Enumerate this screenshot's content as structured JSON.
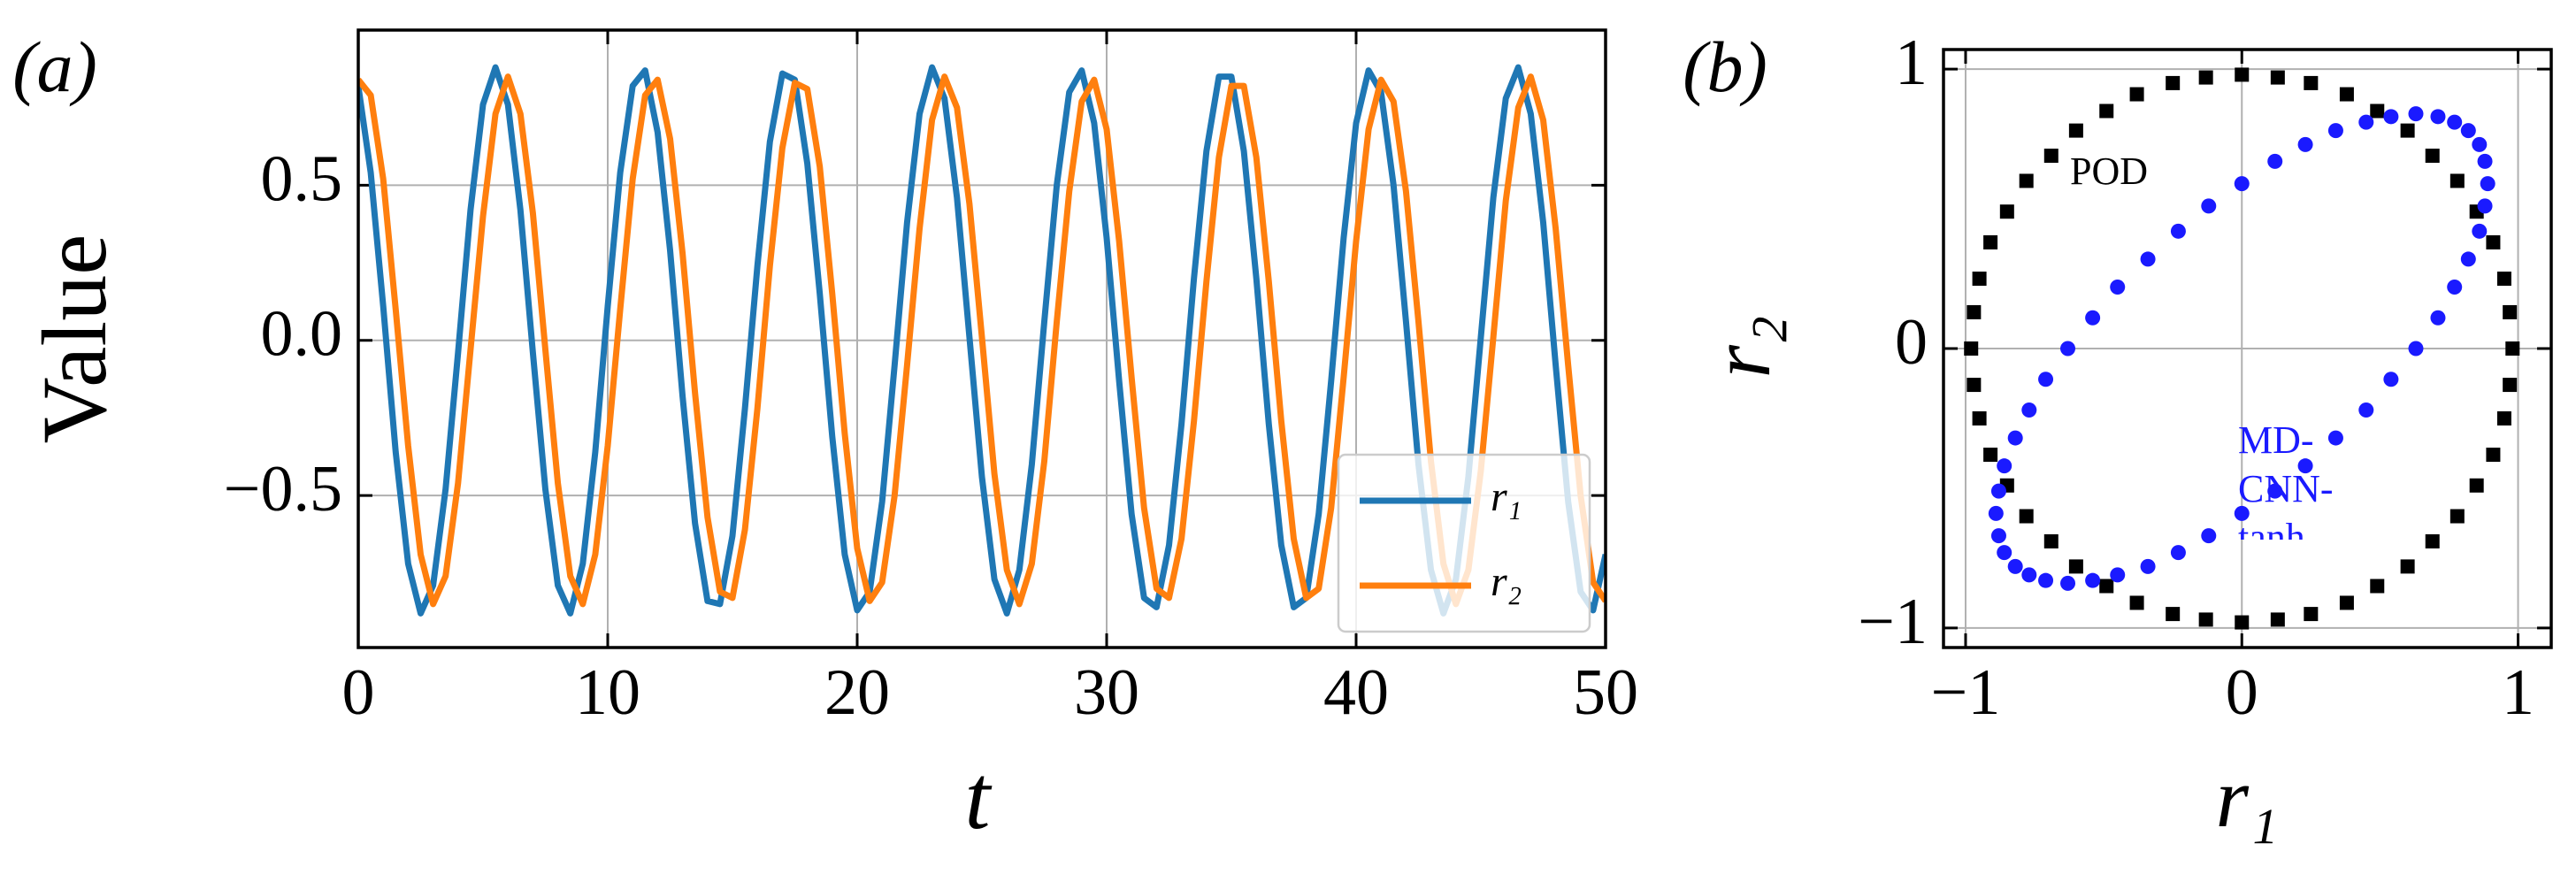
{
  "chart_data": [
    {
      "type": "line",
      "panel_label": "(a)",
      "xlabel": "t",
      "ylabel": "Value",
      "xlim": [
        0,
        50
      ],
      "ylim": [
        -0.99,
        1.0
      ],
      "xticks": [
        0,
        10,
        20,
        30,
        40,
        50
      ],
      "yticks": [
        {
          "value": -0.5,
          "label": "−0.5"
        },
        {
          "value": 0,
          "label": "0.0"
        },
        {
          "value": 0.5,
          "label": "0.5"
        }
      ],
      "grid": true,
      "legend": "lower right",
      "x": [
        0,
        0.5,
        1,
        1.5,
        2,
        2.5,
        3,
        3.5,
        4,
        4.5,
        5,
        5.5,
        6,
        6.5,
        7,
        7.5,
        8,
        8.5,
        9,
        9.5,
        10,
        10.5,
        11,
        11.5,
        12,
        12.5,
        13,
        13.5,
        14,
        14.5,
        15,
        15.5,
        16,
        16.5,
        17,
        17.5,
        18,
        18.5,
        19,
        19.5,
        20,
        20.5,
        21,
        21.5,
        22,
        22.5,
        23,
        23.5,
        24,
        24.5,
        25,
        25.5,
        26,
        26.5,
        27,
        27.5,
        28,
        28.5,
        29,
        29.5,
        30,
        30.5,
        31,
        31.5,
        32,
        32.5,
        33,
        33.5,
        34,
        34.5,
        35,
        35.5,
        36,
        36.5,
        37,
        37.5,
        38,
        38.5,
        39,
        39.5,
        40,
        40.5,
        41,
        41.5,
        42,
        42.5,
        43,
        43.5,
        44,
        44.5,
        45,
        45.5,
        46,
        46.5,
        47,
        47.5,
        48,
        48.5,
        49,
        49.5,
        50
      ],
      "series": [
        {
          "name": "r₁",
          "color": "#1f77b4",
          "values": [
            0.82,
            0.54,
            0.11,
            -0.36,
            -0.72,
            -0.88,
            -0.79,
            -0.48,
            -0.04,
            0.42,
            0.76,
            0.88,
            0.76,
            0.42,
            -0.04,
            -0.48,
            -0.79,
            -0.88,
            -0.72,
            -0.36,
            0.11,
            0.54,
            0.82,
            0.87,
            0.67,
            0.29,
            -0.18,
            -0.59,
            -0.84,
            -0.85,
            -0.63,
            -0.22,
            0.24,
            0.64,
            0.86,
            0.84,
            0.57,
            0.15,
            -0.31,
            -0.69,
            -0.87,
            -0.81,
            -0.52,
            -0.08,
            0.38,
            0.73,
            0.88,
            0.78,
            0.46,
            0.01,
            -0.44,
            -0.77,
            -0.88,
            -0.74,
            -0.4,
            0.06,
            0.5,
            0.8,
            0.87,
            0.7,
            0.33,
            -0.13,
            -0.56,
            -0.83,
            -0.86,
            -0.66,
            -0.27,
            0.2,
            0.61,
            0.85,
            0.85,
            0.61,
            0.2,
            -0.27,
            -0.66,
            -0.86,
            -0.83,
            -0.56,
            -0.13,
            0.33,
            0.7,
            0.87,
            0.8,
            0.5,
            0.06,
            -0.4,
            -0.74,
            -0.88,
            -0.77,
            -0.44,
            0.01,
            0.46,
            0.78,
            0.88,
            0.73,
            0.38,
            -0.08,
            -0.52,
            -0.81,
            -0.87,
            -0.69
          ]
        },
        {
          "name": "r₂",
          "color": "#ff7f0e",
          "values": [
            0.84,
            0.79,
            0.52,
            0.1,
            -0.34,
            -0.69,
            -0.85,
            -0.76,
            -0.46,
            -0.03,
            0.4,
            0.73,
            0.85,
            0.73,
            0.41,
            -0.03,
            -0.46,
            -0.76,
            -0.85,
            -0.69,
            -0.34,
            0.1,
            0.52,
            0.79,
            0.84,
            0.65,
            0.28,
            -0.17,
            -0.57,
            -0.81,
            -0.83,
            -0.61,
            -0.22,
            0.24,
            0.62,
            0.83,
            0.81,
            0.56,
            0.15,
            -0.3,
            -0.67,
            -0.84,
            -0.78,
            -0.5,
            -0.08,
            0.36,
            0.71,
            0.85,
            0.75,
            0.44,
            0.01,
            -0.43,
            -0.74,
            -0.85,
            -0.72,
            -0.39,
            0.06,
            0.48,
            0.77,
            0.84,
            0.68,
            0.32,
            -0.12,
            -0.54,
            -0.8,
            -0.83,
            -0.64,
            -0.26,
            0.19,
            0.59,
            0.82,
            0.82,
            0.59,
            0.19,
            -0.26,
            -0.64,
            -0.83,
            -0.8,
            -0.54,
            -0.12,
            0.32,
            0.68,
            0.84,
            0.77,
            0.48,
            0.06,
            -0.39,
            -0.72,
            -0.85,
            -0.74,
            -0.42,
            0.01,
            0.45,
            0.75,
            0.85,
            0.71,
            0.36,
            -0.08,
            -0.5,
            -0.78,
            -0.84
          ]
        }
      ]
    },
    {
      "type": "scatter",
      "panel_label": "(b)",
      "xlabel": "r₁",
      "ylabel": "r₂",
      "xlim": [
        -1.08,
        1.12
      ],
      "ylim": [
        -1.07,
        1.07
      ],
      "xticks": [
        {
          "value": -1,
          "label": "−1"
        },
        0,
        1
      ],
      "yticks": [
        {
          "value": -1,
          "label": "−1"
        },
        0,
        1
      ],
      "grid": true,
      "series": [
        {
          "name": "POD",
          "color": "#000000",
          "marker": "square",
          "x": [
            0.98,
            0.97,
            0.95,
            0.91,
            0.85,
            0.78,
            0.69,
            0.6,
            0.49,
            0.38,
            0.25,
            0.13,
            0,
            -0.13,
            -0.25,
            -0.38,
            -0.49,
            -0.6,
            -0.69,
            -0.78,
            -0.85,
            -0.91,
            -0.95,
            -0.97,
            -0.98,
            -0.97,
            -0.95,
            -0.91,
            -0.85,
            -0.78,
            -0.69,
            -0.6,
            -0.49,
            -0.38,
            -0.25,
            -0.13,
            0,
            0.13,
            0.25,
            0.38,
            0.49,
            0.6,
            0.69,
            0.78,
            0.85,
            0.91,
            0.95,
            0.97
          ],
          "values": [
            0,
            0.13,
            0.25,
            0.38,
            0.49,
            0.6,
            0.69,
            0.78,
            0.85,
            0.91,
            0.95,
            0.97,
            0.98,
            0.97,
            0.95,
            0.91,
            0.85,
            0.78,
            0.69,
            0.6,
            0.49,
            0.38,
            0.25,
            0.13,
            0,
            -0.13,
            -0.25,
            -0.38,
            -0.49,
            -0.6,
            -0.69,
            -0.78,
            -0.85,
            -0.91,
            -0.95,
            -0.97,
            -0.98,
            -0.97,
            -0.95,
            -0.91,
            -0.85,
            -0.78,
            -0.69,
            -0.6,
            -0.49,
            -0.38,
            -0.25,
            -0.13
          ]
        },
        {
          "name": "MD-CNN-tanh",
          "color": "#1a1aff",
          "marker": "circle",
          "x": [
            0.89,
            0.88,
            0.86,
            0.82,
            0.77,
            0.71,
            0.63,
            0.54,
            0.45,
            0.34,
            0.23,
            0.12,
            0,
            -0.12,
            -0.23,
            -0.34,
            -0.45,
            -0.54,
            -0.63,
            -0.71,
            -0.77,
            -0.82,
            -0.86,
            -0.88,
            -0.89,
            -0.88,
            -0.86,
            -0.82,
            -0.77,
            -0.71,
            -0.63,
            -0.54,
            -0.45,
            -0.34,
            -0.23,
            -0.12,
            0,
            0.12,
            0.23,
            0.34,
            0.45,
            0.54,
            0.63,
            0.71,
            0.77,
            0.82,
            0.86,
            0.88
          ],
          "values": [
            0.59,
            0.67,
            0.73,
            0.78,
            0.81,
            0.83,
            0.84,
            0.83,
            0.81,
            0.78,
            0.73,
            0.67,
            0.59,
            0.51,
            0.42,
            0.32,
            0.22,
            0.11,
            0,
            -0.11,
            -0.22,
            -0.32,
            -0.42,
            -0.51,
            -0.59,
            -0.67,
            -0.73,
            -0.78,
            -0.81,
            -0.83,
            -0.84,
            -0.83,
            -0.81,
            -0.78,
            -0.73,
            -0.67,
            -0.59,
            -0.51,
            -0.42,
            -0.32,
            -0.22,
            -0.11,
            0,
            0.11,
            0.22,
            0.32,
            0.42,
            0.51
          ]
        }
      ]
    }
  ]
}
